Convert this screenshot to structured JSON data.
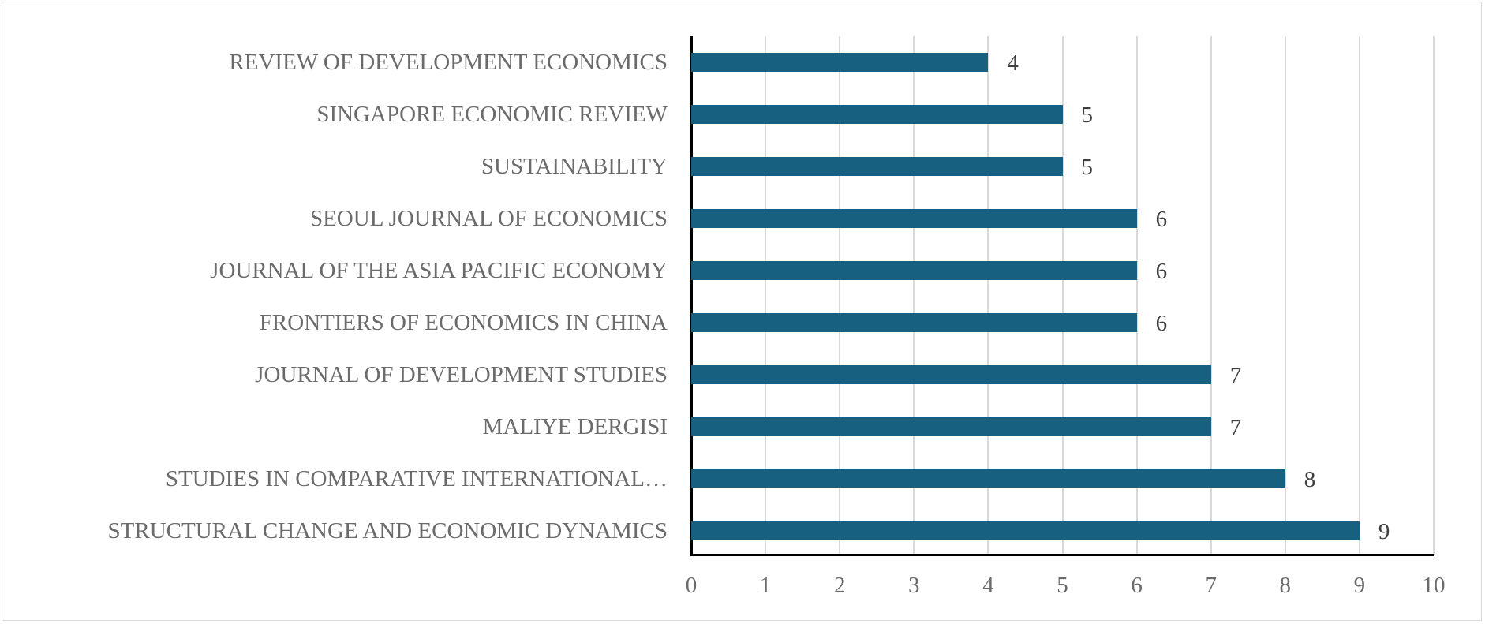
{
  "chart_data": {
    "type": "bar",
    "orientation": "horizontal",
    "title": "",
    "xlabel": "",
    "ylabel": "",
    "categories": [
      "REVIEW OF DEVELOPMENT ECONOMICS",
      "SINGAPORE ECONOMIC REVIEW",
      "SUSTAINABILITY",
      "SEOUL JOURNAL OF ECONOMICS",
      "JOURNAL OF THE ASIA PACIFIC ECONOMY",
      "FRONTIERS OF ECONOMICS IN CHINA",
      "JOURNAL OF DEVELOPMENT STUDIES",
      "MALIYE DERGISI",
      "STUDIES IN COMPARATIVE INTERNATIONAL…",
      "STRUCTURAL CHANGE AND ECONOMIC DYNAMICS"
    ],
    "values": [
      4,
      5,
      5,
      6,
      6,
      6,
      7,
      7,
      8,
      9
    ],
    "xlim": [
      0,
      10
    ],
    "xticks": [
      "0",
      "1",
      "2",
      "3",
      "4",
      "5",
      "6",
      "7",
      "8",
      "9",
      "10"
    ],
    "grid": "vertical",
    "data_labels": true,
    "legend": "none",
    "colors": {
      "bar": "#17607f",
      "grid": "#d9d9d9",
      "text": "#6b6b6b"
    }
  }
}
